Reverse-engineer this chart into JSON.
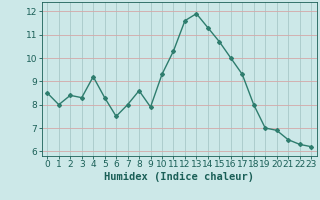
{
  "x": [
    0,
    1,
    2,
    3,
    4,
    5,
    6,
    7,
    8,
    9,
    10,
    11,
    12,
    13,
    14,
    15,
    16,
    17,
    18,
    19,
    20,
    21,
    22,
    23
  ],
  "y": [
    8.5,
    8.0,
    8.4,
    8.3,
    9.2,
    8.3,
    7.5,
    8.0,
    8.6,
    7.9,
    9.3,
    10.3,
    11.6,
    11.9,
    11.3,
    10.7,
    10.0,
    9.3,
    8.0,
    7.0,
    6.9,
    6.5,
    6.3,
    6.2
  ],
  "line_color": "#2e7d6e",
  "marker": "D",
  "marker_size": 2,
  "bg_color": "#cce8e8",
  "xlabel": "Humidex (Indice chaleur)",
  "xlabel_color": "#1a5f57",
  "ylim": [
    5.8,
    12.4
  ],
  "xlim": [
    -0.5,
    23.5
  ],
  "yticks": [
    6,
    7,
    8,
    9,
    10,
    11,
    12
  ],
  "xticks": [
    0,
    1,
    2,
    3,
    4,
    5,
    6,
    7,
    8,
    9,
    10,
    11,
    12,
    13,
    14,
    15,
    16,
    17,
    18,
    19,
    20,
    21,
    22,
    23
  ],
  "tick_color": "#1a5f57",
  "tick_labelsize": 6.5,
  "xlabel_fontsize": 7.5,
  "line_width": 1.0,
  "red_grid_color": "#d4a8a8",
  "teal_grid_color": "#a8c8c8"
}
